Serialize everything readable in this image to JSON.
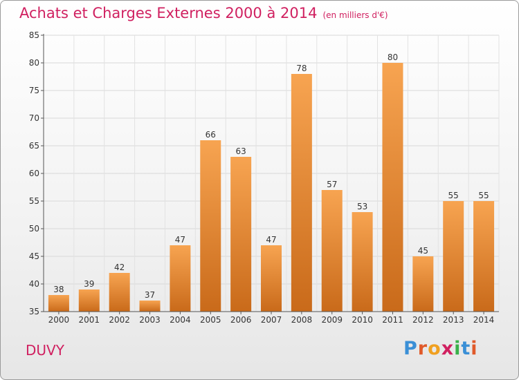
{
  "title": "Achats et Charges Externes 2000 à 2014",
  "subtitle": "(en milliers d'€)",
  "commune": "DUVY",
  "logo": {
    "letters": [
      "P",
      "r",
      "o",
      "x",
      "i",
      "t",
      "i"
    ],
    "colors": [
      "#3a8fd6",
      "#e05a2a",
      "#f0a020",
      "#d02060",
      "#3ab04a",
      "#3a8fd6",
      "#e05a2a"
    ]
  },
  "colors": {
    "accent": "#d02060",
    "bar_top": "#f7a451",
    "bar_bottom": "#c96a1a"
  },
  "chart_data": {
    "type": "bar",
    "title": "Achats et Charges Externes 2000 à 2014",
    "subtitle": "(en milliers d'€)",
    "xlabel": "",
    "ylabel": "",
    "categories": [
      "2000",
      "2001",
      "2002",
      "2003",
      "2004",
      "2005",
      "2006",
      "2007",
      "2008",
      "2009",
      "2010",
      "2011",
      "2012",
      "2013",
      "2014"
    ],
    "values": [
      38,
      39,
      42,
      37,
      47,
      66,
      63,
      47,
      78,
      57,
      53,
      80,
      45,
      55,
      55
    ],
    "ylim": [
      35,
      85
    ],
    "yticks": [
      35,
      40,
      45,
      50,
      55,
      60,
      65,
      70,
      75,
      80,
      85
    ],
    "grid": true,
    "legend": "none"
  }
}
